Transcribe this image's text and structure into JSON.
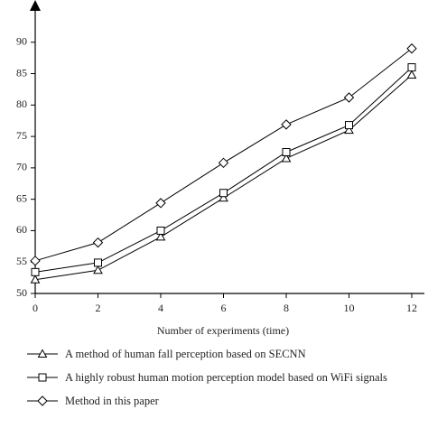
{
  "chart_data": {
    "type": "line",
    "x_label": "Number of experiments (time)",
    "x": [
      0,
      2,
      4,
      6,
      8,
      10,
      12
    ],
    "xlim": [
      0,
      12
    ],
    "xticks": [
      0,
      2,
      4,
      6,
      8,
      10,
      12
    ],
    "ylim": [
      50,
      95
    ],
    "yticks": [
      50,
      55,
      60,
      65,
      70,
      75,
      80,
      85,
      90
    ],
    "series": [
      {
        "name": "A method of human fall perception based on SECNN",
        "color": "#000000",
        "marker": "triangle",
        "values": [
          52.2,
          53.7,
          59,
          65.2,
          71.5,
          76,
          84.8
        ]
      },
      {
        "name": "A highly robust human motion perception model based on WiFi signals",
        "color": "#000000",
        "marker": "square",
        "values": [
          53.4,
          54.9,
          60,
          66,
          72.5,
          76.8,
          86
        ]
      },
      {
        "name": "Method in this paper",
        "color": "#000000",
        "marker": "diamond",
        "values": [
          55.2,
          58.1,
          64.4,
          70.8,
          76.9,
          81.2,
          89
        ]
      }
    ]
  }
}
